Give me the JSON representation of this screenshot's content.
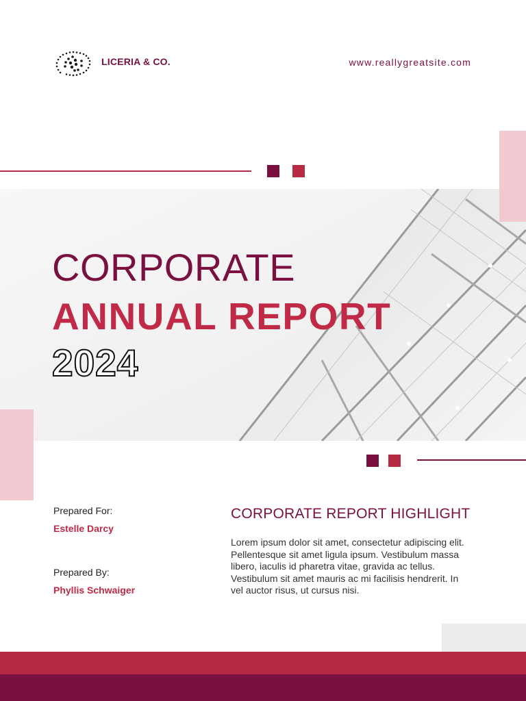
{
  "header": {
    "company_name": "LICERIA & CO.",
    "website": "www.reallygreatsite.com"
  },
  "cover": {
    "title_line1": "CORPORATE",
    "title_line2": "ANNUAL REPORT",
    "year": "2024"
  },
  "prepared": {
    "for_label": "Prepared For:",
    "for_name": "Estelle Darcy",
    "by_label": "Prepared By:",
    "by_name": "Phyllis Schwaiger"
  },
  "highlight": {
    "heading": "CORPORATE REPORT HIGHLIGHT",
    "body": "Lorem ipsum dolor sit amet, consectetur adipiscing elit. Pellentesque sit amet ligula ipsum. Vestibulum massa libero, iaculis id pharetra vitae, gravida ac tellus. Vestibulum sit amet mauris ac mi facilisis hendrerit. In vel auctor risus, ut cursus nisi."
  },
  "colors": {
    "maroon": "#7a1040",
    "crimson": "#b82a44",
    "pink": "#f0c9d1"
  },
  "icons": {
    "logo": "dotted-swirl-logo-icon"
  }
}
